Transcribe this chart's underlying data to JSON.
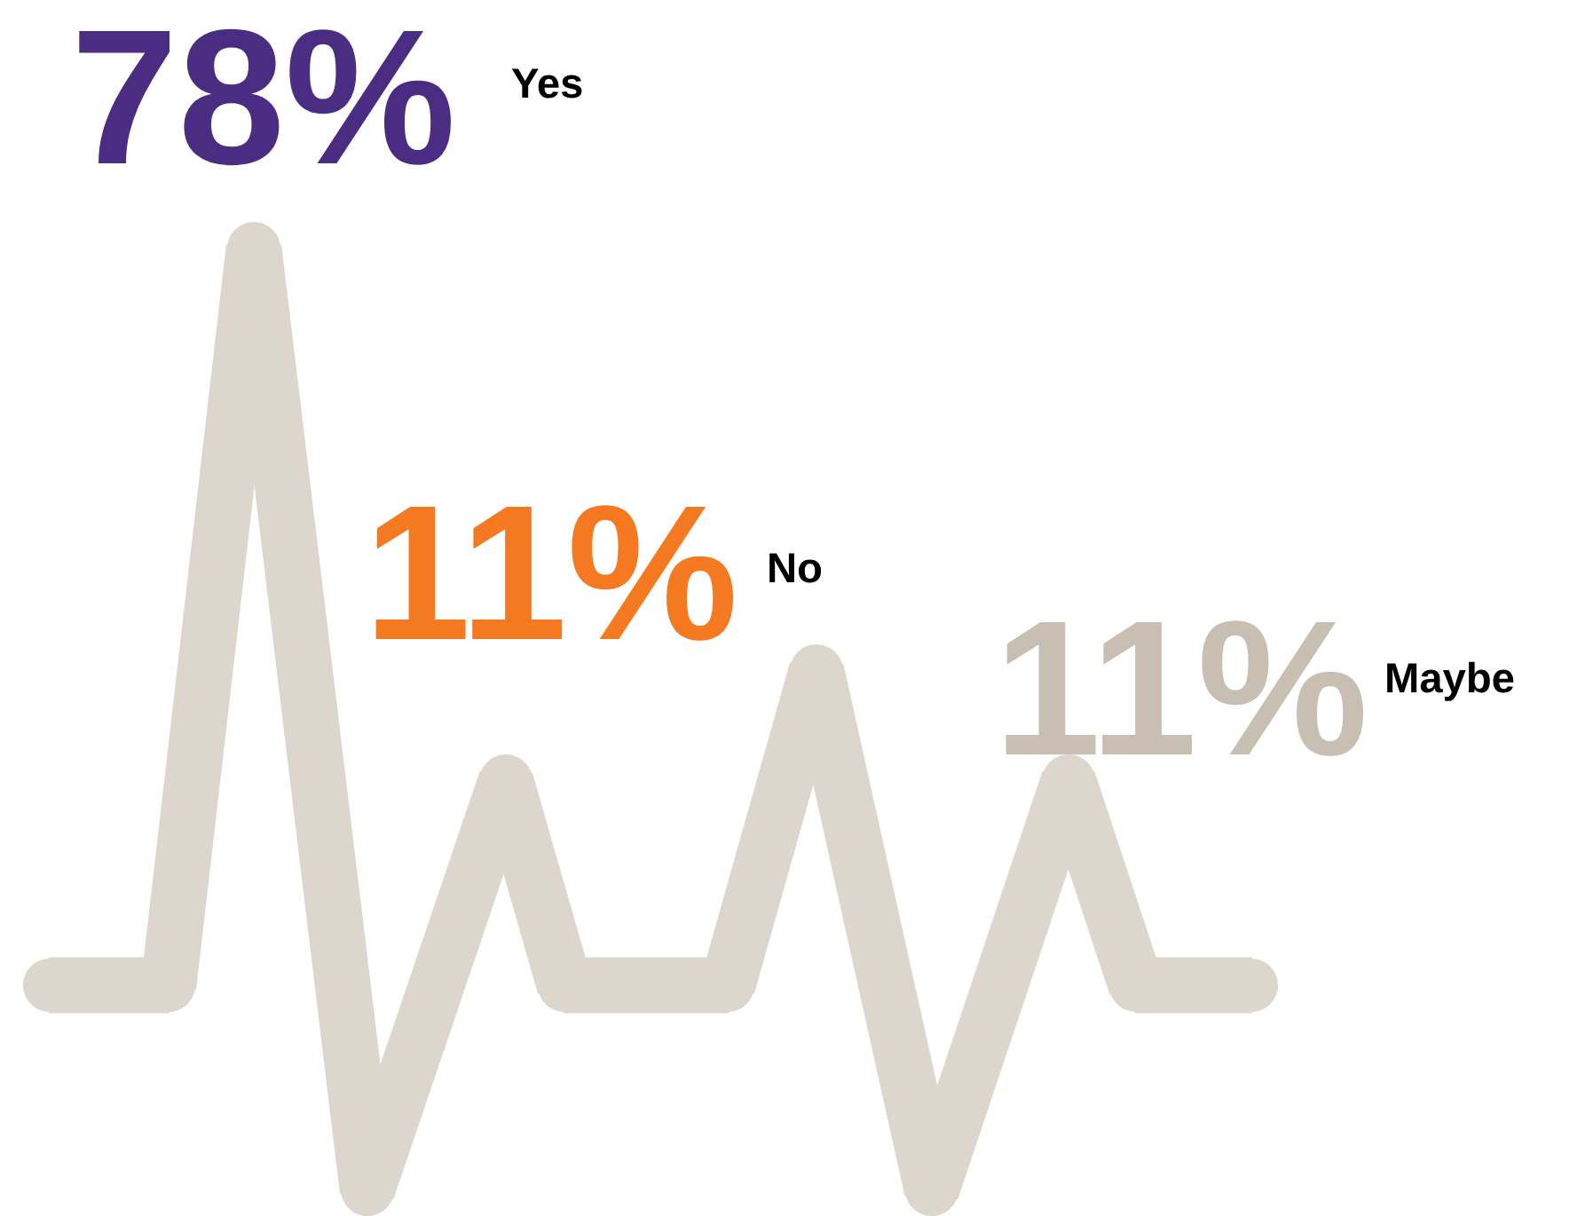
{
  "chart_data": {
    "type": "other",
    "categories": [
      "Yes",
      "No",
      "Maybe"
    ],
    "values": [
      78,
      11,
      11
    ],
    "value_labels": [
      "78%",
      "11%",
      "11%"
    ],
    "colors": [
      "#4b2c83",
      "#f47920",
      "#c8beb1"
    ]
  }
}
